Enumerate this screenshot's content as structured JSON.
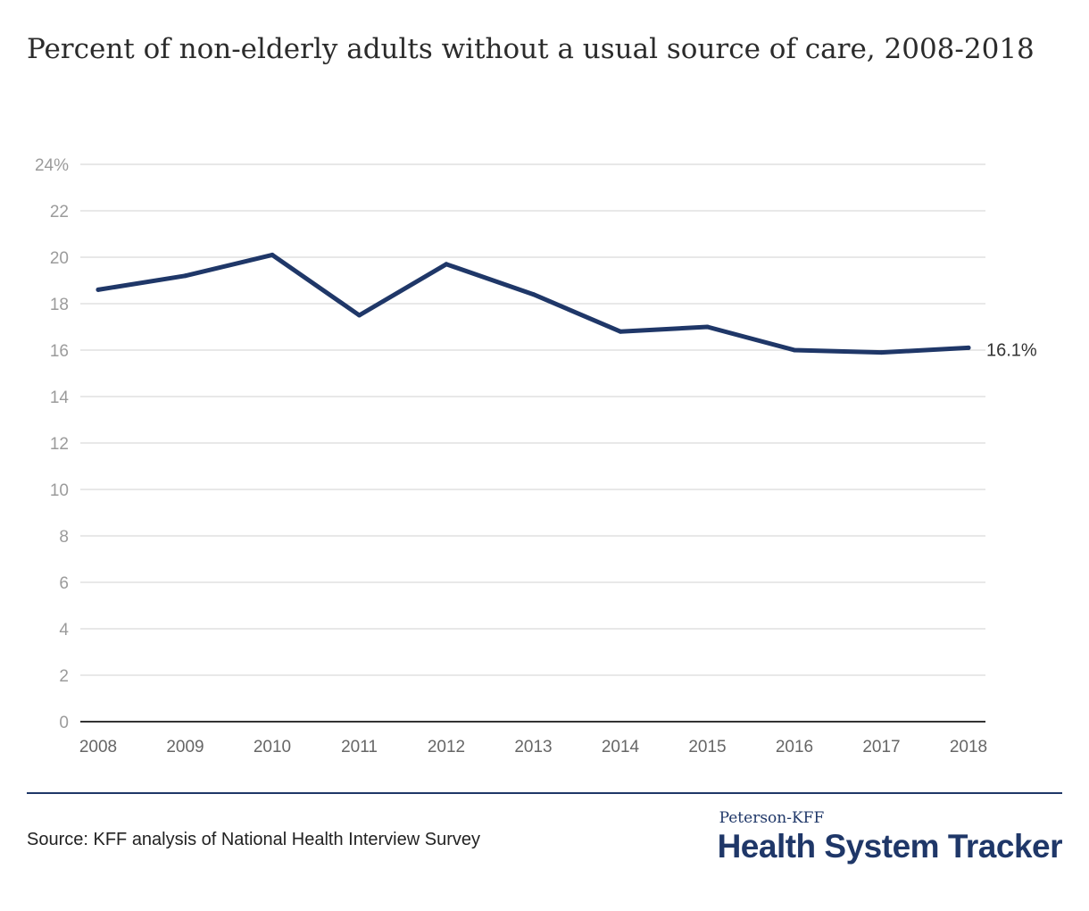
{
  "page": {
    "source": "Source: KFF analysis of National Health Interview Survey",
    "brand_top": "Peterson-KFF",
    "brand_main": "Health System Tracker"
  },
  "colors": {
    "line": "#1f3768",
    "grid": "#d9d9d9",
    "axis_text": "#9b9b9b",
    "label_text": "#333333"
  },
  "chart_data": {
    "type": "line",
    "title": "Percent of non-elderly adults without a usual source of care, 2008-2018",
    "xlabel": "",
    "ylabel": "",
    "x": [
      "2008",
      "2009",
      "2010",
      "2011",
      "2012",
      "2013",
      "2014",
      "2015",
      "2016",
      "2017",
      "2018"
    ],
    "series": [
      {
        "values": [
          18.6,
          19.2,
          20.1,
          17.5,
          19.7,
          18.4,
          16.8,
          17.0,
          16.0,
          15.9,
          16.1
        ]
      }
    ],
    "ylim": [
      0,
      24
    ],
    "yticks": [
      0,
      2,
      4,
      6,
      8,
      10,
      12,
      14,
      16,
      18,
      20,
      22,
      24
    ],
    "ytick_labels": [
      "0",
      "2",
      "4",
      "6",
      "8",
      "10",
      "12",
      "14",
      "16",
      "18",
      "20",
      "22",
      "24%"
    ],
    "end_label": "16.1%",
    "grid": true,
    "legend": "none"
  }
}
